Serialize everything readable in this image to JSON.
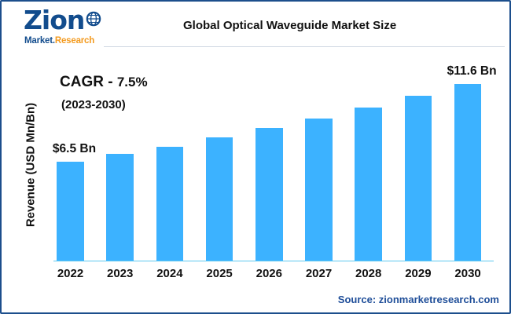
{
  "logo": {
    "main": "Zion",
    "sub_a": "Market.",
    "sub_b": "Research",
    "primary_color": "#124c8d",
    "accent_color": "#f39a1e",
    "icon": "globe-icon"
  },
  "header": {
    "title": "Global Optical Waveguide Market Size"
  },
  "cagr": {
    "label": "CAGR - ",
    "value": "7.5%",
    "period": "(2023-2030)"
  },
  "source": "Source: zionmarketresearch.com",
  "bar_color": "#3cb2ff",
  "chart_data": {
    "type": "bar",
    "title": "Global Optical Waveguide Market Size",
    "xlabel": "",
    "ylabel": "Revenue (USD Mn/Bn)",
    "ylim": [
      0,
      13
    ],
    "grid": false,
    "categories": [
      "2022",
      "2023",
      "2024",
      "2025",
      "2026",
      "2027",
      "2028",
      "2029",
      "2030"
    ],
    "values": [
      6.5,
      7.0,
      7.5,
      8.1,
      8.7,
      9.35,
      10.05,
      10.8,
      11.6
    ],
    "data_labels": [
      {
        "index": 0,
        "text": "$6.5 Bn"
      },
      {
        "index": 8,
        "text": "$11.6 Bn"
      }
    ]
  }
}
